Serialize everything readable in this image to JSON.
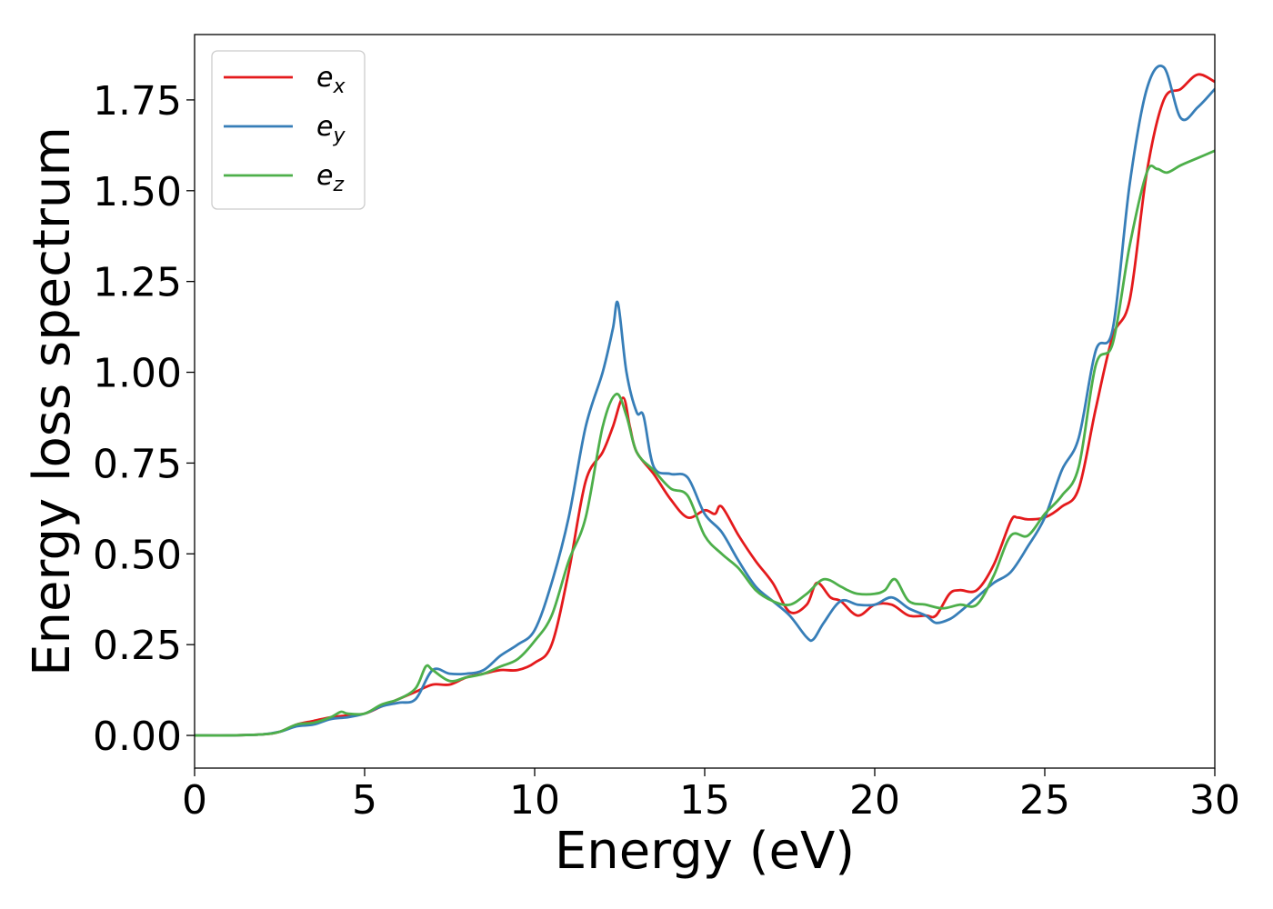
{
  "chart_data": {
    "type": "line",
    "title": "",
    "xlabel": "Energy (eV)",
    "ylabel": "Energy loss spectrum",
    "xlim": [
      0,
      30
    ],
    "ylim": [
      -0.09,
      1.93
    ],
    "xticks": [
      0,
      5,
      10,
      15,
      20,
      25,
      30
    ],
    "xtick_labels": [
      "0",
      "5",
      "10",
      "15",
      "20",
      "25",
      "30"
    ],
    "yticks": [
      0,
      0.25,
      0.5,
      0.75,
      1.0,
      1.25,
      1.5,
      1.75
    ],
    "ytick_labels": [
      "0.00",
      "0.25",
      "0.50",
      "0.75",
      "1.00",
      "1.25",
      "1.50",
      "1.75"
    ],
    "grid": false,
    "legend_position": "top-left",
    "series": [
      {
        "name": "e",
        "subscript": "x",
        "color": "#e41a1c",
        "x": [
          0,
          1,
          2,
          2.5,
          3,
          3.5,
          4,
          4.5,
          5,
          5.5,
          6,
          6.5,
          7,
          7.5,
          8,
          8.5,
          9,
          9.5,
          10,
          10.5,
          11,
          11.5,
          12,
          12.3,
          12.6,
          12.8,
          13,
          13.5,
          14,
          14.5,
          15,
          15.3,
          15.5,
          16,
          16.5,
          17,
          17.5,
          18,
          18.3,
          18.7,
          19,
          19.5,
          20,
          20.5,
          21,
          21.5,
          21.8,
          22.2,
          22.5,
          23,
          23.5,
          24,
          24.2,
          24.5,
          25,
          25.5,
          26,
          26.5,
          27,
          27.5,
          28,
          28.5,
          29,
          29.5,
          30
        ],
        "y": [
          0,
          0,
          0.003,
          0.01,
          0.03,
          0.04,
          0.05,
          0.055,
          0.06,
          0.08,
          0.1,
          0.12,
          0.14,
          0.14,
          0.16,
          0.17,
          0.18,
          0.18,
          0.2,
          0.25,
          0.45,
          0.7,
          0.78,
          0.85,
          0.93,
          0.85,
          0.78,
          0.72,
          0.65,
          0.6,
          0.62,
          0.61,
          0.63,
          0.55,
          0.48,
          0.42,
          0.34,
          0.36,
          0.42,
          0.38,
          0.37,
          0.33,
          0.36,
          0.36,
          0.33,
          0.33,
          0.33,
          0.39,
          0.4,
          0.4,
          0.47,
          0.59,
          0.6,
          0.595,
          0.6,
          0.63,
          0.68,
          0.9,
          1.1,
          1.2,
          1.55,
          1.75,
          1.78,
          1.82,
          1.8
        ]
      },
      {
        "name": "e",
        "subscript": "y",
        "color": "#377eb8",
        "x": [
          0,
          1,
          2,
          2.5,
          3,
          3.5,
          4,
          4.5,
          5,
          5.5,
          6,
          6.5,
          7,
          7.5,
          8,
          8.5,
          9,
          9.5,
          10,
          10.5,
          11,
          11.5,
          12,
          12.3,
          12.45,
          12.7,
          13,
          13.2,
          13.5,
          14,
          14.5,
          15,
          15.5,
          16,
          16.5,
          17,
          17.5,
          18,
          18.2,
          18.5,
          19,
          19.5,
          20,
          20.5,
          21,
          21.5,
          21.8,
          22.2,
          22.5,
          23,
          23.5,
          24,
          24.5,
          25,
          25.5,
          26,
          26.5,
          27,
          27.5,
          28,
          28.5,
          29,
          29.5,
          30
        ],
        "y": [
          0,
          0,
          0.003,
          0.01,
          0.025,
          0.03,
          0.045,
          0.05,
          0.06,
          0.08,
          0.09,
          0.1,
          0.18,
          0.17,
          0.17,
          0.18,
          0.22,
          0.25,
          0.29,
          0.42,
          0.6,
          0.85,
          1.0,
          1.12,
          1.19,
          1.0,
          0.89,
          0.88,
          0.74,
          0.72,
          0.71,
          0.61,
          0.56,
          0.48,
          0.41,
          0.37,
          0.33,
          0.27,
          0.265,
          0.31,
          0.37,
          0.36,
          0.36,
          0.38,
          0.35,
          0.33,
          0.31,
          0.32,
          0.34,
          0.38,
          0.42,
          0.45,
          0.52,
          0.6,
          0.73,
          0.82,
          1.06,
          1.12,
          1.52,
          1.78,
          1.84,
          1.7,
          1.73,
          1.78
        ]
      },
      {
        "name": "e",
        "subscript": "z",
        "color": "#4daf4a",
        "x": [
          0,
          1,
          2,
          2.5,
          3,
          3.5,
          4,
          4.3,
          4.5,
          5,
          5.5,
          6,
          6.5,
          6.8,
          7,
          7.5,
          8,
          8.5,
          9,
          9.5,
          10,
          10.5,
          11,
          11.5,
          12,
          12.4,
          12.7,
          13,
          13.5,
          14,
          14.5,
          15,
          15.5,
          16,
          16.5,
          17,
          17.5,
          18,
          18.5,
          19,
          19.2,
          19.5,
          20,
          20.3,
          20.6,
          21,
          21.5,
          22,
          22.5,
          23,
          23.5,
          24,
          24.5,
          25,
          25.5,
          26,
          26.5,
          27,
          27.5,
          28,
          28.3,
          28.6,
          29,
          29.5,
          30
        ],
        "y": [
          0,
          0,
          0.003,
          0.01,
          0.03,
          0.035,
          0.05,
          0.065,
          0.06,
          0.06,
          0.085,
          0.1,
          0.13,
          0.19,
          0.18,
          0.15,
          0.16,
          0.17,
          0.19,
          0.21,
          0.26,
          0.33,
          0.48,
          0.6,
          0.85,
          0.94,
          0.88,
          0.78,
          0.73,
          0.68,
          0.66,
          0.55,
          0.5,
          0.46,
          0.4,
          0.37,
          0.36,
          0.39,
          0.43,
          0.41,
          0.4,
          0.39,
          0.39,
          0.4,
          0.43,
          0.37,
          0.36,
          0.35,
          0.36,
          0.36,
          0.44,
          0.55,
          0.55,
          0.61,
          0.66,
          0.74,
          1.02,
          1.08,
          1.35,
          1.55,
          1.56,
          1.55,
          1.57,
          1.59,
          1.61
        ]
      }
    ]
  }
}
